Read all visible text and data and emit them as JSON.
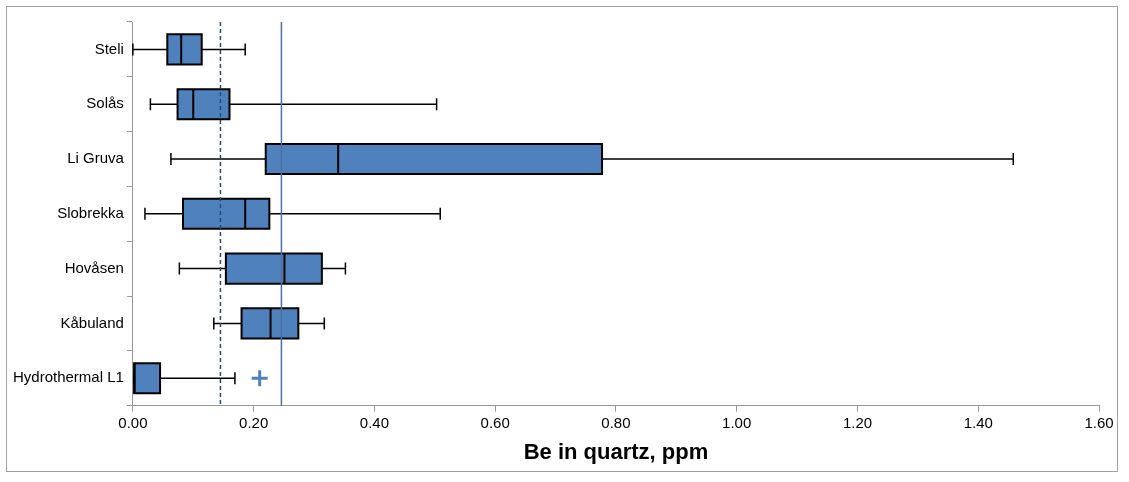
{
  "chart_data": {
    "type": "box",
    "orientation": "horizontal",
    "xlabel": "Be in quartz, ppm",
    "categories": [
      "Steli",
      "Solås",
      "Li Gruva",
      "Slobrekka",
      "Hovåsen",
      "Kåbuland",
      "Hydrothermal L1"
    ],
    "color": "#4f81bd",
    "boxes": [
      {
        "low": 0.0,
        "q1": 0.057,
        "median": 0.08,
        "q3": 0.114,
        "high": 0.186
      },
      {
        "low": 0.029,
        "q1": 0.074,
        "median": 0.1,
        "q3": 0.16,
        "high": 0.503
      },
      {
        "low": 0.063,
        "q1": 0.22,
        "median": 0.34,
        "q3": 0.777,
        "high": 1.458
      },
      {
        "low": 0.02,
        "q1": 0.083,
        "median": 0.186,
        "q3": 0.226,
        "high": 0.509
      },
      {
        "low": 0.077,
        "q1": 0.154,
        "median": 0.251,
        "q3": 0.313,
        "high": 0.352
      },
      {
        "low": 0.134,
        "q1": 0.18,
        "median": 0.228,
        "q3": 0.274,
        "high": 0.317
      },
      {
        "low": 0.002,
        "q1": 0.002,
        "median": 0.003,
        "q3": 0.045,
        "high": 0.169,
        "outliers": [
          0.21
        ]
      }
    ],
    "xlim": [
      0,
      1.6
    ],
    "xticks": [
      {
        "value": 0,
        "label": "0.00"
      },
      {
        "value": 0.2,
        "label": "0.20"
      },
      {
        "value": 0.4,
        "label": "0.40"
      },
      {
        "value": 0.6,
        "label": "0.60"
      },
      {
        "value": 0.8,
        "label": "0.80"
      },
      {
        "value": 1.0,
        "label": "1.00"
      },
      {
        "value": 1.2,
        "label": "1.20"
      },
      {
        "value": 1.4,
        "label": "1.40"
      },
      {
        "value": 1.6,
        "label": "1.60"
      }
    ],
    "ref_lines": [
      {
        "axis": "x",
        "value": 0.145,
        "color": "#1f4e79",
        "line_style": "dashed"
      },
      {
        "axis": "x",
        "value": 0.246,
        "color": "#4f6fa0",
        "line_style": "solid"
      }
    ],
    "grid": false,
    "legend": false
  }
}
